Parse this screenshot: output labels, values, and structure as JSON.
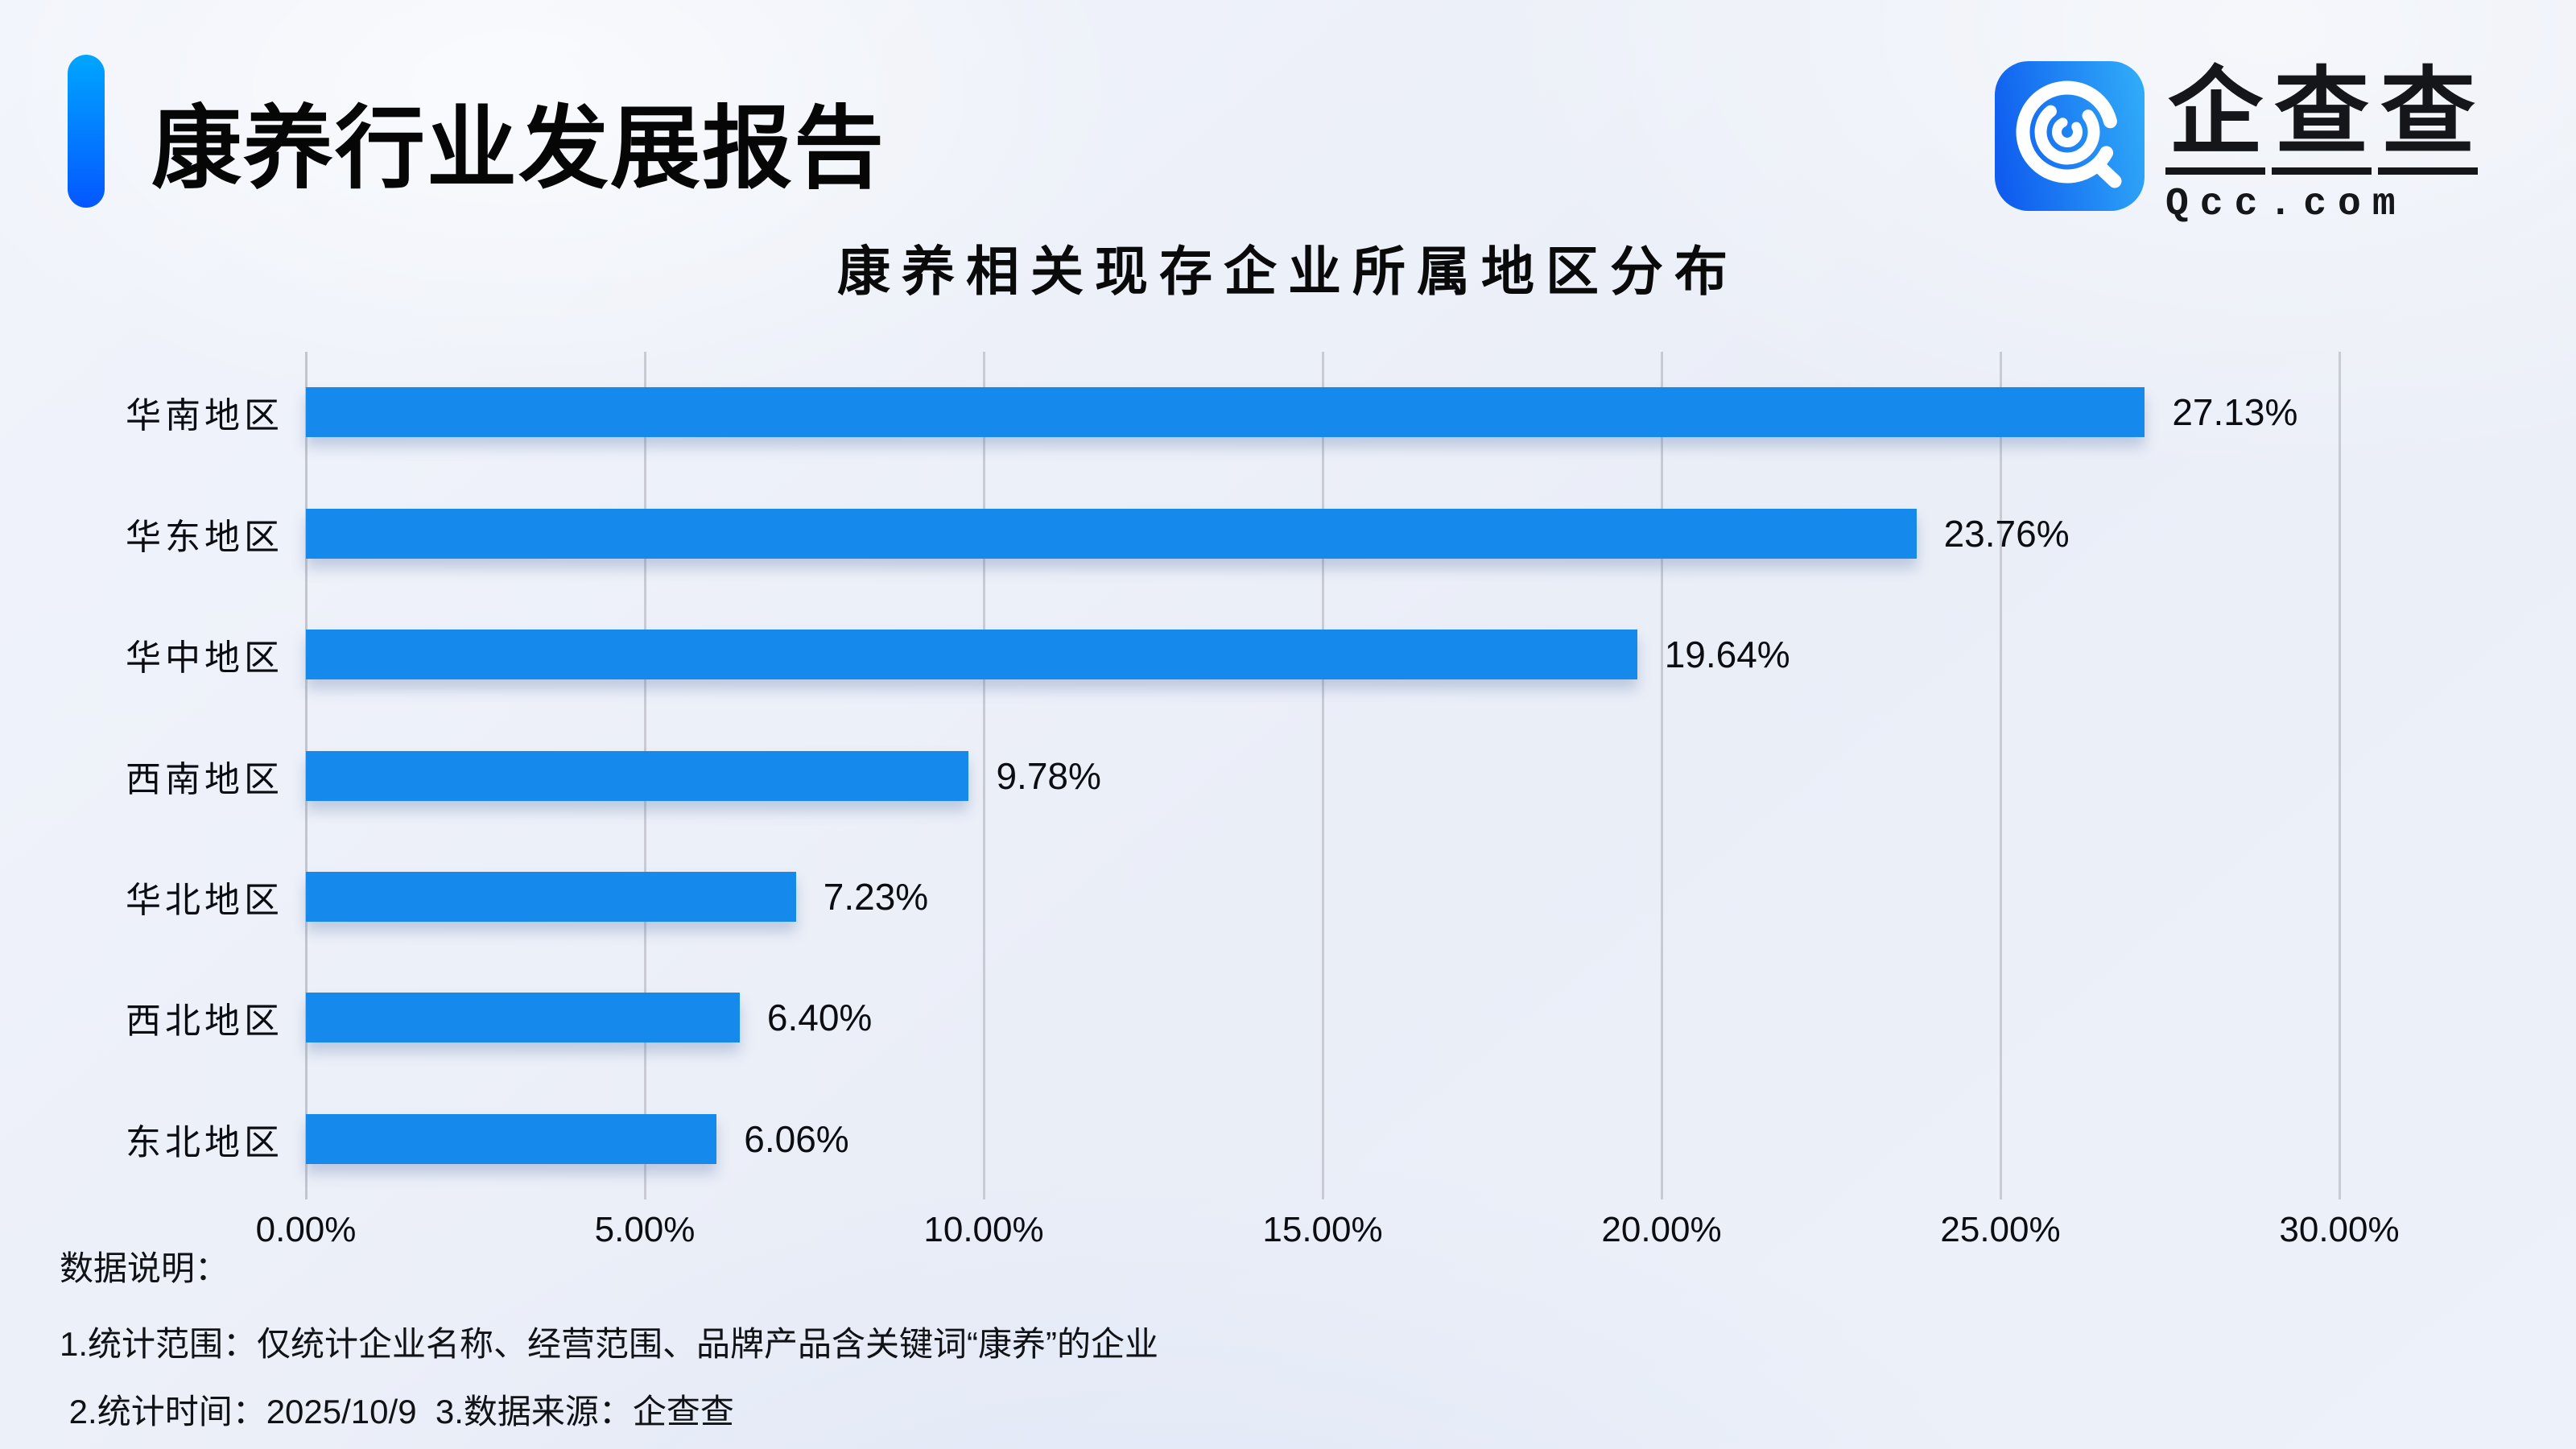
{
  "header": {
    "title": "康养行业发展报告",
    "accent_gradient": [
      "#00a6ff",
      "#0557ff"
    ]
  },
  "logo": {
    "brand": "企查查",
    "domain": "Qcc.com",
    "icon": "qcc-magnifier-icon",
    "icon_color_light": "#2fa9f8",
    "icon_color_dark": "#0f5cef"
  },
  "chart": {
    "title": "康养相关现存企业所属地区分布"
  },
  "chart_data": {
    "type": "bar",
    "orientation": "horizontal",
    "title": "康养相关现存企业所属地区分布",
    "categories": [
      "华南地区",
      "华东地区",
      "华中地区",
      "西南地区",
      "华北地区",
      "西北地区",
      "东北地区"
    ],
    "values": [
      27.13,
      23.76,
      19.64,
      9.78,
      7.23,
      6.4,
      6.06
    ],
    "value_labels": [
      "27.13%",
      "23.76%",
      "19.64%",
      "9.78%",
      "7.23%",
      "6.40%",
      "6.06%"
    ],
    "x_ticks": [
      0,
      5,
      10,
      15,
      20,
      25,
      30
    ],
    "x_tick_labels": [
      "0.00%",
      "5.00%",
      "10.00%",
      "15.00%",
      "20.00%",
      "25.00%",
      "30.00%"
    ],
    "xlim": [
      0,
      30
    ],
    "xlabel": "",
    "ylabel": "",
    "bar_color": "#1589ec",
    "grid": true,
    "legend": false
  },
  "footer": {
    "heading": "数据说明：",
    "note_scope": "1.统计范围：仅统计企业名称、经营范围、品牌产品含关键词“康养”的企业",
    "note_time_source": " 2.统计时间：2025/10/9  3.数据来源：企查查"
  }
}
